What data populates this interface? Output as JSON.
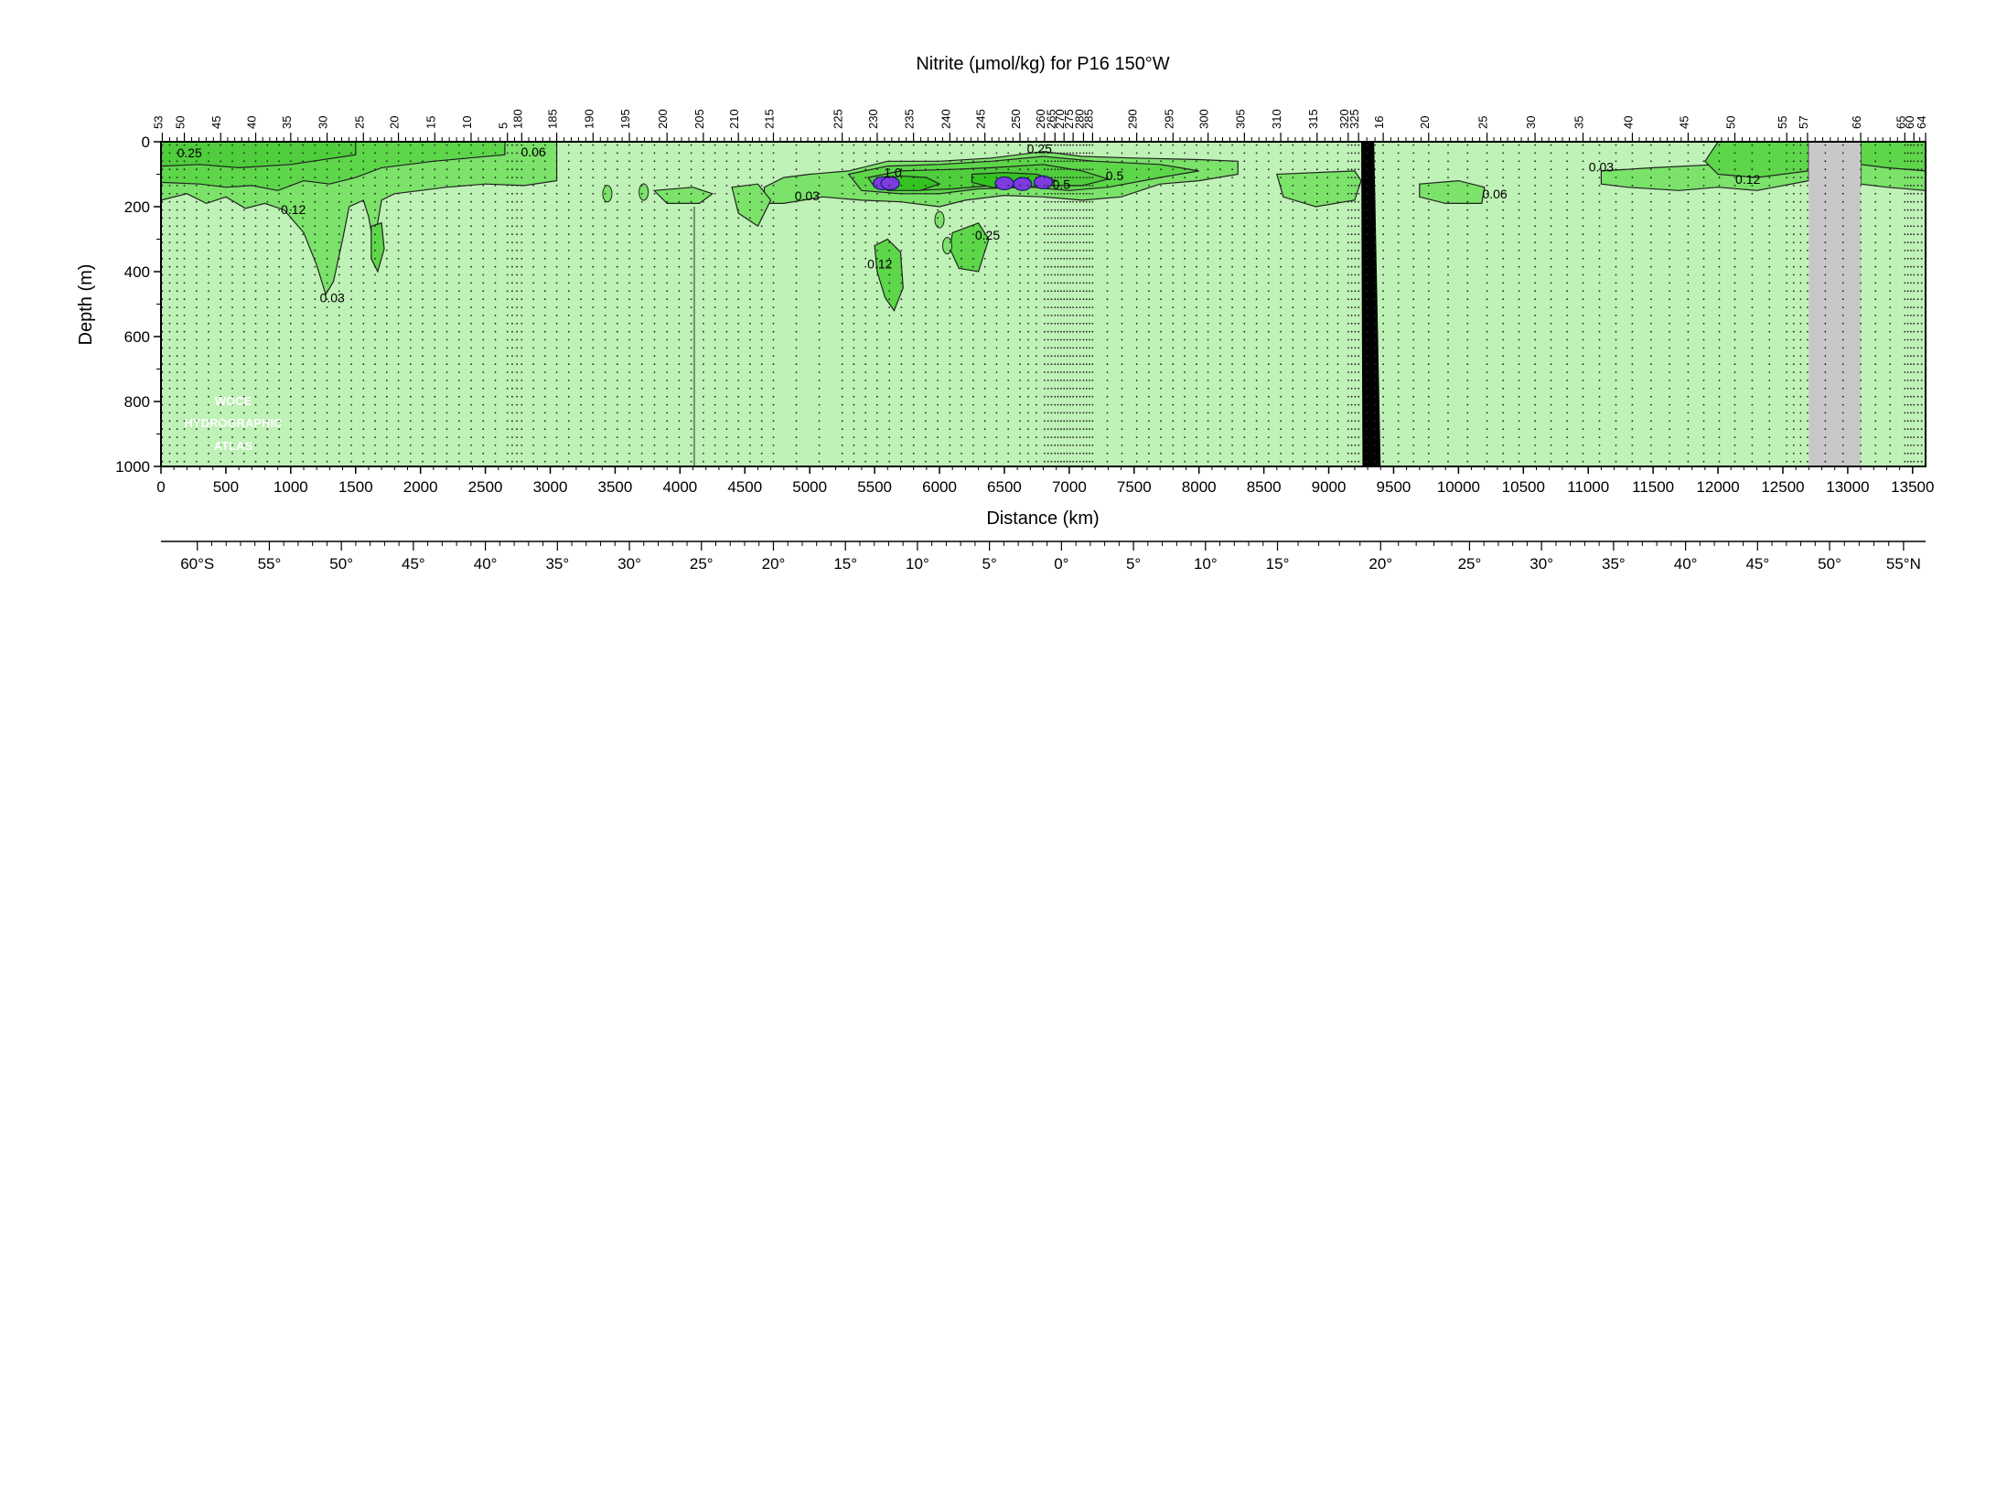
{
  "chart_data": {
    "type": "heatmap",
    "title": "Nitrite (μmol/kg) for P16 150°W",
    "xlabel": "Distance (km)",
    "ylabel": "Depth (m)",
    "xlim": [
      0,
      13600
    ],
    "ylim": [
      0,
      1000
    ],
    "y_inverted": true,
    "x_ticks": [
      0,
      500,
      1000,
      1500,
      2000,
      2500,
      3000,
      3500,
      4000,
      4500,
      5000,
      5500,
      6000,
      6500,
      7000,
      7500,
      8000,
      8500,
      9000,
      9500,
      10000,
      10500,
      11000,
      11500,
      12000,
      12500,
      13000,
      13500
    ],
    "y_ticks": [
      0,
      200,
      400,
      600,
      800,
      1000
    ],
    "latitude_axis": [
      {
        "label": "60°S",
        "km": 280
      },
      {
        "label": "55°",
        "km": 835
      },
      {
        "label": "50°",
        "km": 1390
      },
      {
        "label": "45°",
        "km": 1945
      },
      {
        "label": "40°",
        "km": 2500
      },
      {
        "label": "35°",
        "km": 3055
      },
      {
        "label": "30°",
        "km": 3610
      },
      {
        "label": "25°",
        "km": 4165
      },
      {
        "label": "20°",
        "km": 4720
      },
      {
        "label": "15°",
        "km": 5275
      },
      {
        "label": "10°",
        "km": 5830
      },
      {
        "label": "5°",
        "km": 6385
      },
      {
        "label": "0°",
        "km": 6940
      },
      {
        "label": "5°",
        "km": 7495
      },
      {
        "label": "10°",
        "km": 8050
      },
      {
        "label": "15°",
        "km": 8605
      },
      {
        "label": "20°",
        "km": 9400
      },
      {
        "label": "25°",
        "km": 10085
      },
      {
        "label": "30°",
        "km": 10640
      },
      {
        "label": "35°",
        "km": 11195
      },
      {
        "label": "40°",
        "km": 11750
      },
      {
        "label": "45°",
        "km": 12305
      },
      {
        "label": "50°",
        "km": 12860
      },
      {
        "label": "55°N",
        "km": 13430
      }
    ],
    "stations": [
      {
        "label": "53",
        "km": 10
      },
      {
        "label": "50",
        "km": 180
      },
      {
        "label": "45",
        "km": 460
      },
      {
        "label": "40",
        "km": 730
      },
      {
        "label": "35",
        "km": 1000
      },
      {
        "label": "30",
        "km": 1280
      },
      {
        "label": "25",
        "km": 1560
      },
      {
        "label": "20",
        "km": 1830
      },
      {
        "label": "15",
        "km": 2110
      },
      {
        "label": "10",
        "km": 2390
      },
      {
        "label": "5",
        "km": 2670
      },
      {
        "label": "180",
        "km": 2780
      },
      {
        "label": "185",
        "km": 3050
      },
      {
        "label": "190",
        "km": 3330
      },
      {
        "label": "195",
        "km": 3610
      },
      {
        "label": "200",
        "km": 3900
      },
      {
        "label": "205",
        "km": 4180
      },
      {
        "label": "210",
        "km": 4450
      },
      {
        "label": "215",
        "km": 4720
      },
      {
        "label": "225",
        "km": 5250
      },
      {
        "label": "230",
        "km": 5520
      },
      {
        "label": "235",
        "km": 5800
      },
      {
        "label": "240",
        "km": 6080
      },
      {
        "label": "245",
        "km": 6350
      },
      {
        "label": "250",
        "km": 6620
      },
      {
        "label": "260",
        "km": 6810
      },
      {
        "label": "265",
        "km": 6890
      },
      {
        "label": "270",
        "km": 6960
      },
      {
        "label": "275",
        "km": 7030
      },
      {
        "label": "280",
        "km": 7110
      },
      {
        "label": "285",
        "km": 7180
      },
      {
        "label": "290",
        "km": 7520
      },
      {
        "label": "295",
        "km": 7800
      },
      {
        "label": "300",
        "km": 8070
      },
      {
        "label": "305",
        "km": 8350
      },
      {
        "label": "310",
        "km": 8630
      },
      {
        "label": "315",
        "km": 8910
      },
      {
        "label": "320",
        "km": 9150
      },
      {
        "label": "325",
        "km": 9230
      },
      {
        "label": "16",
        "km": 9420
      },
      {
        "label": "20",
        "km": 9770
      },
      {
        "label": "25",
        "km": 10220
      },
      {
        "label": "30",
        "km": 10590
      },
      {
        "label": "35",
        "km": 10960
      },
      {
        "label": "40",
        "km": 11340
      },
      {
        "label": "45",
        "km": 11770
      },
      {
        "label": "50",
        "km": 12130
      },
      {
        "label": "55",
        "km": 12530
      },
      {
        "label": "57",
        "km": 12690
      },
      {
        "label": "66",
        "km": 13100
      },
      {
        "label": "65",
        "km": 13440
      },
      {
        "label": "60",
        "km": 13510
      },
      {
        "label": "64",
        "km": 13600
      }
    ],
    "contour_levels": [
      0.03,
      0.06,
      0.12,
      0.25,
      0.5,
      1
    ],
    "contour_labels": [
      {
        "text": "0.25",
        "km": 220,
        "depth": 48
      },
      {
        "text": "0.06",
        "km": 2870,
        "depth": 45
      },
      {
        "text": "0.12",
        "km": 1020,
        "depth": 222
      },
      {
        "text": "0.03",
        "km": 1320,
        "depth": 495
      },
      {
        "text": "0.03",
        "km": 4980,
        "depth": 180
      },
      {
        "text": "1.0",
        "km": 5640,
        "depth": 108
      },
      {
        "text": "0.25",
        "km": 6770,
        "depth": 35
      },
      {
        "text": "0.5",
        "km": 7350,
        "depth": 118
      },
      {
        "text": "0.5",
        "km": 6940,
        "depth": 145
      },
      {
        "text": "0.25",
        "km": 6370,
        "depth": 302
      },
      {
        "text": "0.12",
        "km": 5540,
        "depth": 390
      },
      {
        "text": "0.03",
        "km": 11100,
        "depth": 92
      },
      {
        "text": "0.06",
        "km": 10280,
        "depth": 175
      },
      {
        "text": "0.12",
        "km": 12230,
        "depth": 130
      }
    ],
    "colors": {
      "background_low": "#bff2b6",
      "level_006": "#7be26a",
      "level_012": "#5dd64a",
      "level_025": "#4fcd3c",
      "level_05": "#33c321",
      "level_1": "#7d3be0",
      "missing_gray": "#c8c8c8",
      "gap_black": "#000000"
    },
    "missing_data_region_km": [
      12700,
      13100
    ],
    "gap_region_km": [
      9250,
      9400
    ]
  },
  "watermark": [
    "WOCE",
    "HYDROGRAPHIC",
    "ATLAS"
  ]
}
